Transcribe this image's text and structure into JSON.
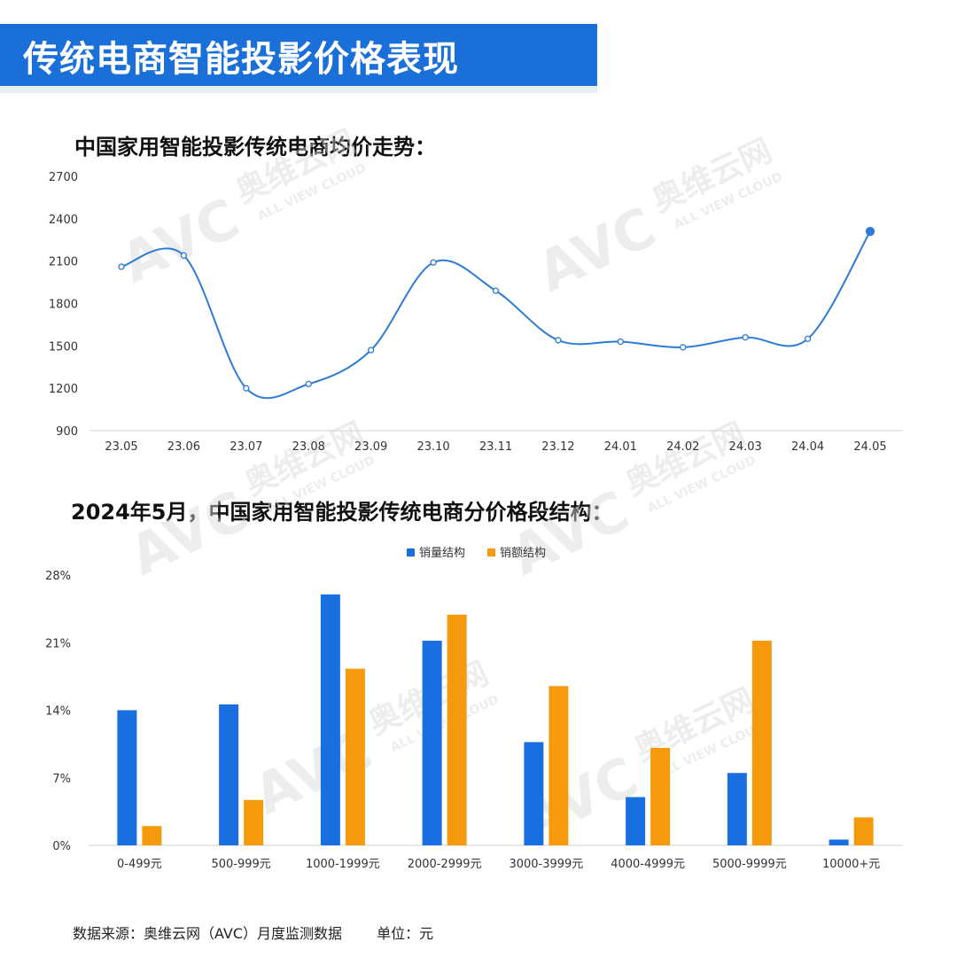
{
  "header": {
    "title": "传统电商智能投影价格表现"
  },
  "line_section": {
    "title": "中国家用智能投影传统电商均价走势："
  },
  "bar_section": {
    "title": "2024年5月，中国家用智能投影传统电商分价格段结构："
  },
  "footer": {
    "source": "数据来源：奥维云网（AVC）月度监测数据",
    "unit": "单位：元"
  },
  "watermark": {
    "brand": "AVC",
    "cn": "奥维云网",
    "en": "ALL VIEW CLOUD"
  },
  "colors": {
    "line": "#2e7bd6",
    "blue": "#1a6fe0",
    "orange": "#f59a0c",
    "banner": "#1a6fd8"
  },
  "chart_data": [
    {
      "type": "line",
      "categories": [
        "23.05",
        "23.06",
        "23.07",
        "23.08",
        "23.09",
        "23.10",
        "23.11",
        "23.12",
        "24.01",
        "24.02",
        "24.03",
        "24.04",
        "24.05"
      ],
      "values": [
        2060,
        2140,
        1200,
        1230,
        1470,
        2090,
        1890,
        1540,
        1530,
        1490,
        1560,
        1550,
        2310
      ],
      "yticks": [
        "900",
        "1200",
        "1500",
        "1800",
        "2100",
        "2400",
        "2700"
      ],
      "ylim": [
        900,
        2700
      ],
      "grid": false
    },
    {
      "type": "bar",
      "categories": [
        "0-499元",
        "500-999元",
        "1000-1999元",
        "2000-2999元",
        "3000-3999元",
        "4000-4999元",
        "5000-9999元",
        "10000+元"
      ],
      "series": [
        {
          "name": "销量结构",
          "values": [
            14.0,
            14.6,
            26.0,
            21.2,
            10.7,
            5.0,
            7.5,
            0.6
          ]
        },
        {
          "name": "销额结构",
          "values": [
            2.0,
            4.7,
            18.3,
            23.9,
            16.5,
            10.1,
            21.2,
            2.9
          ]
        }
      ],
      "yticks": [
        "0%",
        "7%",
        "14%",
        "21%",
        "28%"
      ],
      "ylim": [
        0,
        28
      ],
      "legend": "top-center",
      "grid": false
    }
  ]
}
